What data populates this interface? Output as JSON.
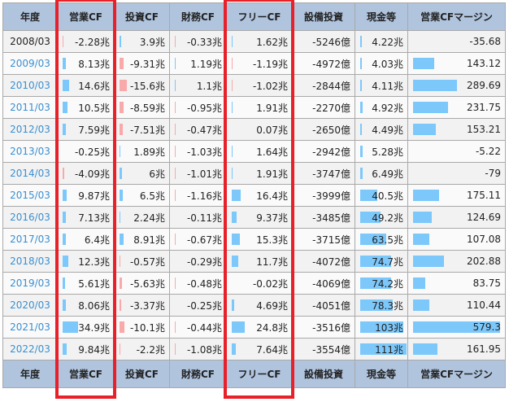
{
  "headers": [
    "年度",
    "営業CF",
    "投資CF",
    "財務CF",
    "フリーCF",
    "設備投資",
    "現金等",
    "営業CFマージン"
  ],
  "colors": {
    "header_bg": "#b0c4de",
    "positive_bar": "#7cc8fb",
    "negative_bar": "#f9a9aa",
    "highlight_box": "#e8202a",
    "year_link": "#3a8fd0"
  },
  "rows": [
    [
      "2008/03",
      "-2.28兆",
      "3.9兆",
      "-0.33兆",
      "1.62兆",
      "-5246億",
      "4.22兆",
      "-35.68"
    ],
    [
      "2009/03",
      "8.13兆",
      "-9.31兆",
      "1.19兆",
      "-1.19兆",
      "-4972億",
      "4.03兆",
      "143.12"
    ],
    [
      "2010/03",
      "14.6兆",
      "-15.6兆",
      "1.1兆",
      "-1.02兆",
      "-2844億",
      "4.11兆",
      "289.69"
    ],
    [
      "2011/03",
      "10.5兆",
      "-8.59兆",
      "-0.95兆",
      "1.91兆",
      "-2270億",
      "4.92兆",
      "231.75"
    ],
    [
      "2012/03",
      "7.59兆",
      "-7.51兆",
      "-0.47兆",
      "0.07兆",
      "-2650億",
      "4.49兆",
      "153.21"
    ],
    [
      "2013/03",
      "-0.25兆",
      "1.89兆",
      "-1.03兆",
      "1.64兆",
      "-2942億",
      "5.28兆",
      "-5.22"
    ],
    [
      "2014/03",
      "-4.09兆",
      "6兆",
      "-1.01兆",
      "1.91兆",
      "-3747億",
      "6.49兆",
      "-79"
    ],
    [
      "2015/03",
      "9.87兆",
      "6.5兆",
      "-1.16兆",
      "16.4兆",
      "-3999億",
      "40.5兆",
      "175.11"
    ],
    [
      "2016/03",
      "7.13兆",
      "2.24兆",
      "-0.11兆",
      "9.37兆",
      "-3485億",
      "49.2兆",
      "124.69"
    ],
    [
      "2017/03",
      "6.4兆",
      "8.91兆",
      "-0.67兆",
      "15.3兆",
      "-3715億",
      "63.5兆",
      "107.08"
    ],
    [
      "2018/03",
      "12.3兆",
      "-0.57兆",
      "-0.29兆",
      "11.7兆",
      "-4072億",
      "74.7兆",
      "202.88"
    ],
    [
      "2019/03",
      "5.61兆",
      "-5.63兆",
      "-0.48兆",
      "-0.02兆",
      "-4069億",
      "74.2兆",
      "83.75"
    ],
    [
      "2020/03",
      "8.06兆",
      "-3.37兆",
      "-0.25兆",
      "4.69兆",
      "-4051億",
      "78.3兆",
      "110.44"
    ],
    [
      "2021/03",
      "34.9兆",
      "-10.1兆",
      "-0.44兆",
      "24.8兆",
      "-3516億",
      "103兆",
      "579.3"
    ],
    [
      "2022/03",
      "9.84兆",
      "-2.2兆",
      "-1.08兆",
      "7.64兆",
      "-3554億",
      "111兆",
      "161.95"
    ]
  ]
}
